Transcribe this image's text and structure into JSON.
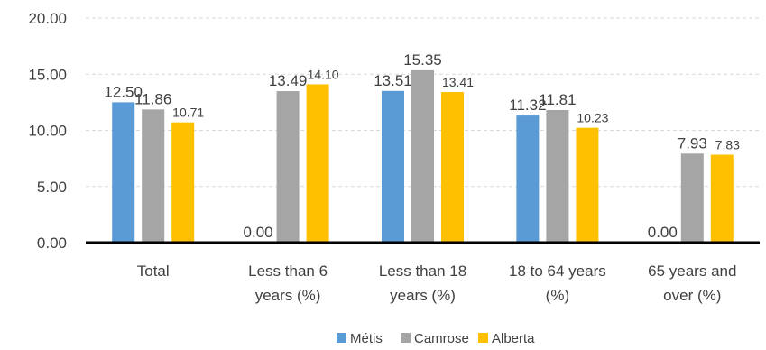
{
  "chart_data": {
    "type": "bar",
    "title": "",
    "xlabel": "",
    "ylabel": "",
    "ylim": [
      0,
      20
    ],
    "yticks": [
      "0.00",
      "5.00",
      "10.00",
      "15.00",
      "20.00"
    ],
    "grid": true,
    "legend_position": "bottom",
    "categories": [
      [
        "Total"
      ],
      [
        "Less than 6",
        "years (%)"
      ],
      [
        "Less than 18",
        "years (%)"
      ],
      [
        "18 to 64 years",
        "(%)"
      ],
      [
        "65 years and",
        "over (%)"
      ]
    ],
    "series": [
      {
        "name": "Métis",
        "color": "#5b9bd5",
        "values": [
          12.5,
          0.0,
          13.51,
          11.32,
          0.0
        ],
        "labels": [
          "12.50",
          "0.00",
          "13.51",
          "11.32",
          "0.00"
        ]
      },
      {
        "name": "Camrose",
        "color": "#a5a5a5",
        "values": [
          11.86,
          13.49,
          15.35,
          11.81,
          7.93
        ],
        "labels": [
          "11.86",
          "13.49",
          "15.35",
          "11.81",
          "7.93"
        ]
      },
      {
        "name": "Alberta",
        "color": "#ffc000",
        "values": [
          10.71,
          14.1,
          13.41,
          10.23,
          7.83
        ],
        "labels": [
          "10.71",
          "14.10",
          "13.41",
          "10.23",
          "7.83"
        ]
      }
    ]
  }
}
